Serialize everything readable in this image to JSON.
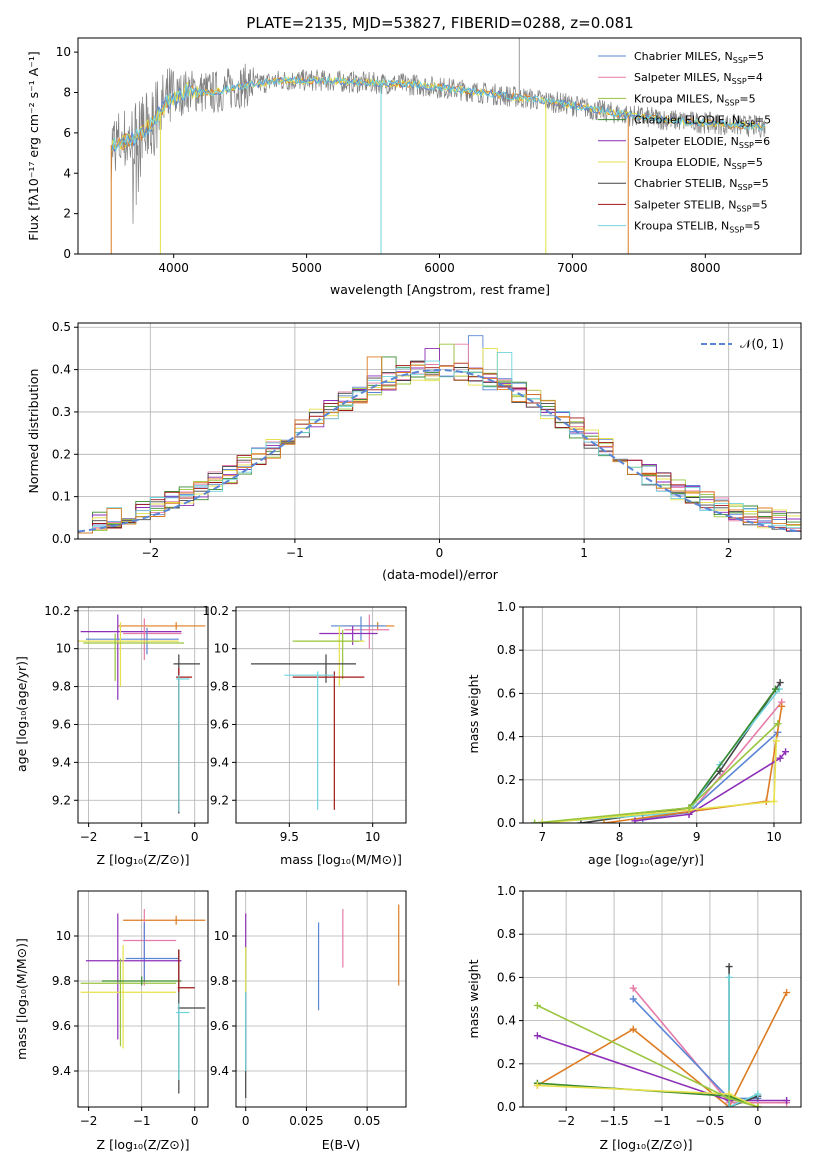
{
  "colors": {
    "chabrier_miles": "#5b86d6",
    "salpeter_miles": "#e57ca8",
    "kroupa_miles": "#9ac53f",
    "chabrier_elodie": "#3a8a2e",
    "salpeter_elodie": "#8e2fb8",
    "kroupa_elodie": "#e6e04a",
    "chabrier_stelib": "#444444",
    "salpeter_stelib": "#a01818",
    "kroupa_stelib": "#6ed4dc",
    "orange": "#dd7c22",
    "gaussian": "#5b86d6",
    "data": "#808080"
  },
  "chart_data": [
    {
      "type": "line",
      "title": "PLATE=2135, MJD=53827, FIBERID=0288, z=0.081",
      "xlabel": "wavelength [Angstrom, rest frame]",
      "ylabel": "Flux [fλ10⁻¹⁷ erg cm⁻² s⁻¹ A⁻¹]",
      "xlim": [
        3280,
        8720
      ],
      "ylim": [
        0,
        10.7
      ],
      "xticks": [
        4000,
        5000,
        6000,
        7000,
        8000
      ],
      "yticks": [
        0,
        2,
        4,
        6,
        8,
        10
      ],
      "legend": [
        {
          "name": "Chabrier MILES, N",
          "sub": "SSP",
          "tail": "=5",
          "color_key": "chabrier_miles"
        },
        {
          "name": "Salpeter MILES, N",
          "sub": "SSP",
          "tail": "=4",
          "color_key": "salpeter_miles"
        },
        {
          "name": "Kroupa MILES, N",
          "sub": "SSP",
          "tail": "=5",
          "color_key": "kroupa_miles"
        },
        {
          "name": "Chabrier ELODIE, N",
          "sub": "SSP",
          "tail": "=5",
          "color_key": "chabrier_elodie"
        },
        {
          "name": "Salpeter ELODIE, N",
          "sub": "SSP",
          "tail": "=6",
          "color_key": "salpeter_elodie"
        },
        {
          "name": "Kroupa ELODIE, N",
          "sub": "SSP",
          "tail": "=5",
          "color_key": "kroupa_elodie"
        },
        {
          "name": "Chabrier STELIB, N",
          "sub": "SSP",
          "tail": "=5",
          "color_key": "chabrier_stelib"
        },
        {
          "name": "Salpeter STELIB, N",
          "sub": "SSP",
          "tail": "=5",
          "color_key": "salpeter_stelib"
        },
        {
          "name": "Kroupa STELIB, N",
          "sub": "SSP",
          "tail": "=5",
          "color_key": "kroupa_stelib"
        }
      ],
      "legend_position": "upper-right",
      "continuum": [
        [
          3530,
          5.4
        ],
        [
          3650,
          5.6
        ],
        [
          3750,
          5.9
        ],
        [
          3850,
          6.6
        ],
        [
          3950,
          7.5
        ],
        [
          4100,
          8.1
        ],
        [
          4300,
          8.0
        ],
        [
          4500,
          8.3
        ],
        [
          4800,
          8.6
        ],
        [
          5100,
          8.6
        ],
        [
          5400,
          8.5
        ],
        [
          5800,
          8.4
        ],
        [
          6200,
          8.1
        ],
        [
          6550,
          7.8
        ],
        [
          6900,
          7.5
        ],
        [
          7200,
          7.1
        ],
        [
          7500,
          6.8
        ],
        [
          7800,
          6.6
        ],
        [
          8000,
          6.5
        ],
        [
          8200,
          6.4
        ],
        [
          8450,
          6.3
        ]
      ],
      "data_spike": [
        6600,
        10.7
      ]
    },
    {
      "type": "histogram",
      "xlabel": "(data-model)/error",
      "ylabel": "Normed distribution",
      "xlim": [
        -2.5,
        2.5
      ],
      "ylim": [
        0,
        0.51
      ],
      "xticks": [
        -2,
        -1,
        0,
        1,
        2
      ],
      "yticks": [
        0.0,
        0.1,
        0.2,
        0.3,
        0.4,
        0.5
      ],
      "gaussian_label": "𝒩(0, 1)",
      "bin_width": 0.1,
      "series_seed": [
        {
          "color_key": "chabrier_miles",
          "peak": [
            0.25,
            0.48
          ]
        },
        {
          "color_key": "salpeter_miles",
          "peak": [
            0.15,
            0.46
          ]
        },
        {
          "color_key": "kroupa_miles",
          "peak": [
            0.05,
            0.46
          ]
        },
        {
          "color_key": "chabrier_elodie",
          "peak": [
            -0.35,
            0.43
          ]
        },
        {
          "color_key": "salpeter_elodie",
          "peak": [
            -0.05,
            0.45
          ]
        },
        {
          "color_key": "kroupa_elodie",
          "peak": [
            0.35,
            0.45
          ]
        },
        {
          "color_key": "chabrier_stelib",
          "peak": [
            -0.15,
            0.42
          ]
        },
        {
          "color_key": "salpeter_stelib",
          "peak": [
            -0.25,
            0.41
          ]
        },
        {
          "color_key": "kroupa_stelib",
          "peak": [
            0.45,
            0.44
          ]
        },
        {
          "color_key": "orange",
          "peak": [
            -0.45,
            0.43
          ]
        }
      ]
    },
    {
      "type": "errorbar",
      "xlabel": "Z [log₁₀(Z/Z⊙)]",
      "ylabel": "age  [log₁₀(age/yr)]",
      "xlim": [
        -2.2,
        0.25
      ],
      "ylim": [
        9.08,
        10.22
      ],
      "xticks": [
        -2,
        -1,
        0
      ],
      "yticks": [
        9.2,
        9.4,
        9.6,
        9.8,
        10.0,
        10.2
      ],
      "points": [
        {
          "x": -0.35,
          "xerr": [
            1.1,
            0.55
          ],
          "y": 10.12,
          "yerr": [
            0.02,
            0.02
          ],
          "color_key": "orange"
        },
        {
          "x": -1.45,
          "xerr": [
            0.7,
            1.2
          ],
          "y": 10.09,
          "yerr": [
            0.36,
            0.09
          ],
          "color_key": "salpeter_elodie"
        },
        {
          "x": -0.95,
          "xerr": [
            0.4,
            0.7
          ],
          "y": 10.08,
          "yerr": [
            0.14,
            0.08
          ],
          "color_key": "salpeter_miles"
        },
        {
          "x": -0.9,
          "xerr": [
            1.15,
            0.6
          ],
          "y": 10.05,
          "yerr": [
            0.08,
            0.06
          ],
          "color_key": "chabrier_miles"
        },
        {
          "x": -1.4,
          "xerr": [
            0.8,
            1.1
          ],
          "y": 10.04,
          "yerr": [
            0.24,
            0.1
          ],
          "color_key": "kroupa_elodie"
        },
        {
          "x": -1.5,
          "xerr": [
            0.6,
            1.3
          ],
          "y": 10.03,
          "yerr": [
            0.2,
            0.05
          ],
          "color_key": "kroupa_miles"
        },
        {
          "x": -0.3,
          "xerr": [
            0.1,
            0.4
          ],
          "y": 9.92,
          "yerr": [
            0.79,
            0.05
          ],
          "color_key": "chabrier_stelib"
        },
        {
          "x": -0.3,
          "xerr": [
            0.05,
            0.25
          ],
          "y": 9.85,
          "yerr": [
            0.7,
            0.05
          ],
          "color_key": "salpeter_stelib"
        },
        {
          "x": -0.3,
          "xerr": [
            0.05,
            0.2
          ],
          "y": 9.84,
          "yerr": [
            0.7,
            0.02
          ],
          "color_key": "kroupa_stelib"
        }
      ]
    },
    {
      "type": "errorbar",
      "xlabel": "mass [log₁₀(M/M⊙)]",
      "ylabel": "",
      "xlim": [
        9.18,
        10.2
      ],
      "ylim": [
        9.08,
        10.22
      ],
      "xticks": [
        9.5,
        10.0
      ],
      "yticks": [
        9.2,
        9.4,
        9.6,
        9.8,
        10.0,
        10.2
      ],
      "points": [
        {
          "x": 10.03,
          "xerr": [
            0.2,
            0.1
          ],
          "y": 10.12,
          "yerr": [
            0.02,
            0.02
          ],
          "color_key": "orange"
        },
        {
          "x": 9.98,
          "xerr": [
            0.15,
            0.12
          ],
          "y": 10.1,
          "yerr": [
            0.1,
            0.08
          ],
          "color_key": "salpeter_miles"
        },
        {
          "x": 9.93,
          "xerr": [
            0.18,
            0.15
          ],
          "y": 10.12,
          "yerr": [
            0.08,
            0.05
          ],
          "color_key": "chabrier_miles"
        },
        {
          "x": 9.88,
          "xerr": [
            0.2,
            0.15
          ],
          "y": 10.08,
          "yerr": [
            0.06,
            0.04
          ],
          "color_key": "salpeter_elodie"
        },
        {
          "x": 9.8,
          "xerr": [
            0.25,
            0.15
          ],
          "y": 10.04,
          "yerr": [
            0.24,
            0.08
          ],
          "color_key": "kroupa_elodie"
        },
        {
          "x": 9.82,
          "xerr": [
            0.3,
            0.1
          ],
          "y": 10.04,
          "yerr": [
            0.2,
            0.06
          ],
          "color_key": "kroupa_miles"
        },
        {
          "x": 9.72,
          "xerr": [
            0.45,
            0.18
          ],
          "y": 9.92,
          "yerr": [
            0.1,
            0.05
          ],
          "color_key": "chabrier_stelib"
        },
        {
          "x": 9.77,
          "xerr": [
            0.25,
            0.18
          ],
          "y": 9.85,
          "yerr": [
            0.7,
            0.03
          ],
          "color_key": "salpeter_stelib"
        },
        {
          "x": 9.67,
          "xerr": [
            0.2,
            0.1
          ],
          "y": 9.86,
          "yerr": [
            0.71,
            0.02
          ],
          "color_key": "kroupa_stelib"
        }
      ]
    },
    {
      "type": "line",
      "xlabel": "age  [log₁₀(age/yr)]",
      "ylabel": "mass weight",
      "xlim": [
        6.75,
        10.35
      ],
      "ylim": [
        0,
        1.0
      ],
      "xticks": [
        7,
        8,
        9,
        10
      ],
      "yticks": [
        0.0,
        0.2,
        0.4,
        0.6,
        0.8,
        1.0
      ],
      "series": [
        {
          "color_key": "chabrier_stelib",
          "x": [
            7.5,
            8.9,
            9.3,
            10.08
          ],
          "y": [
            0.0,
            0.07,
            0.24,
            0.65
          ]
        },
        {
          "color_key": "kroupa_stelib",
          "x": [
            6.9,
            8.9,
            9.3,
            10.07
          ],
          "y": [
            0.0,
            0.05,
            0.27,
            0.62
          ]
        },
        {
          "color_key": "chabrier_elodie",
          "x": [
            7.0,
            8.9,
            10.02
          ],
          "y": [
            0.0,
            0.07,
            0.62
          ]
        },
        {
          "color_key": "salpeter_miles",
          "x": [
            8.9,
            10.1
          ],
          "y": [
            0.04,
            0.56
          ]
        },
        {
          "color_key": "chabrier_miles",
          "x": [
            8.3,
            8.9,
            10.05
          ],
          "y": [
            0.02,
            0.05,
            0.42
          ]
        },
        {
          "color_key": "orange",
          "x": [
            7.8,
            9.9,
            10.1
          ],
          "y": [
            0.0,
            0.1,
            0.54
          ]
        },
        {
          "color_key": "salpeter_elodie",
          "x": [
            8.2,
            8.9,
            10.08,
            10.15
          ],
          "y": [
            0.01,
            0.04,
            0.3,
            0.33
          ]
        },
        {
          "color_key": "kroupa_elodie",
          "x": [
            7.0,
            8.9,
            10.0,
            10.03
          ],
          "y": [
            0.0,
            0.06,
            0.1,
            0.38
          ]
        },
        {
          "color_key": "kroupa_miles",
          "x": [
            6.9,
            8.9,
            10.05
          ],
          "y": [
            0.0,
            0.07,
            0.46
          ]
        }
      ]
    },
    {
      "type": "errorbar",
      "xlabel": "Z [log₁₀(Z/Z⊙)]",
      "ylabel": "mass [log₁₀(M/M⊙)]",
      "xlim": [
        -2.2,
        0.25
      ],
      "ylim": [
        9.24,
        10.2
      ],
      "xticks": [
        -2,
        -1,
        0
      ],
      "yticks": [
        9.4,
        9.6,
        9.8,
        10.0
      ],
      "points": [
        {
          "x": -0.35,
          "xerr": [
            1.0,
            0.55
          ],
          "y": 10.07,
          "yerr": [
            0.02,
            0.02
          ],
          "color_key": "orange"
        },
        {
          "x": -0.95,
          "xerr": [
            0.4,
            0.6
          ],
          "y": 9.98,
          "yerr": [
            0.2,
            0.14
          ],
          "color_key": "salpeter_miles"
        },
        {
          "x": -0.95,
          "xerr": [
            0.35,
            0.65
          ],
          "y": 9.9,
          "yerr": [
            0.1,
            0.16
          ],
          "color_key": "chabrier_miles"
        },
        {
          "x": -1.45,
          "xerr": [
            0.6,
            1.2
          ],
          "y": 9.89,
          "yerr": [
            0.35,
            0.21
          ],
          "color_key": "salpeter_elodie"
        },
        {
          "x": -1.35,
          "xerr": [
            0.8,
            1.0
          ],
          "y": 9.75,
          "yerr": [
            0.25,
            0.21
          ],
          "color_key": "kroupa_elodie"
        },
        {
          "x": -1.4,
          "xerr": [
            0.75,
            1.05
          ],
          "y": 9.79,
          "yerr": [
            0.28,
            0.11
          ],
          "color_key": "kroupa_miles"
        },
        {
          "x": -1.0,
          "xerr": [
            0.75,
            0.75
          ],
          "y": 9.8,
          "yerr": [
            0.02,
            0.02
          ],
          "color_key": "chabrier_elodie"
        },
        {
          "x": -0.3,
          "xerr": [
            0.02,
            0.5
          ],
          "y": 9.68,
          "yerr": [
            0.38,
            0.26
          ],
          "color_key": "chabrier_stelib"
        },
        {
          "x": -0.3,
          "xerr": [
            0.02,
            0.3
          ],
          "y": 9.77,
          "yerr": [
            0.02,
            0.17
          ],
          "color_key": "salpeter_stelib"
        },
        {
          "x": -0.3,
          "xerr": [
            0.05,
            0.2
          ],
          "y": 9.66,
          "yerr": [
            0.3,
            0.04
          ],
          "color_key": "kroupa_stelib"
        }
      ]
    },
    {
      "type": "errorbar",
      "xlabel": "E(B-V)",
      "ylabel": "",
      "xlim": [
        -0.004,
        0.066
      ],
      "ylim": [
        9.24,
        10.2
      ],
      "xticks": [
        0.0,
        0.025,
        0.05
      ],
      "yticks": [
        9.4,
        9.6,
        9.8,
        10.0
      ],
      "points": [
        {
          "x": 0.063,
          "y": 9.95,
          "yerr": [
            0.17,
            0.19
          ],
          "color_key": "orange"
        },
        {
          "x": 0.04,
          "y": 9.98,
          "yerr": [
            0.12,
            0.14
          ],
          "color_key": "salpeter_miles"
        },
        {
          "x": 0.03,
          "y": 9.87,
          "yerr": [
            0.2,
            0.19
          ],
          "color_key": "chabrier_miles"
        },
        {
          "x": 0.0,
          "y": 9.95,
          "yerr": [
            0.1,
            0.15
          ],
          "color_key": "salpeter_elodie"
        },
        {
          "x": 0.0,
          "y": 9.7,
          "yerr": [
            0.42,
            0.25
          ],
          "color_key": "chabrier_stelib"
        },
        {
          "x": 0.0,
          "y": 9.6,
          "yerr": [
            0.2,
            0.35
          ],
          "color_key": "kroupa_stelib"
        },
        {
          "x": 0.0,
          "y": 9.85,
          "yerr": [
            0.1,
            0.1
          ],
          "color_key": "kroupa_elodie"
        }
      ]
    },
    {
      "type": "line",
      "xlabel": "Z [log₁₀(Z/Z⊙)]",
      "ylabel": "mass weight",
      "xlim": [
        -2.45,
        0.45
      ],
      "ylim": [
        0,
        1.0
      ],
      "xticks": [
        -2.0,
        -1.5,
        -1.0,
        -0.5,
        0.0
      ],
      "yticks": [
        0.0,
        0.2,
        0.4,
        0.6,
        0.8,
        1.0
      ],
      "series": [
        {
          "color_key": "orange",
          "x": [
            -2.3,
            -1.3,
            -0.3,
            0.3
          ],
          "y": [
            0.1,
            0.36,
            0.0,
            0.53
          ]
        },
        {
          "color_key": "salpeter_miles",
          "x": [
            -1.3,
            -0.3,
            0.3
          ],
          "y": [
            0.55,
            0.02,
            0.02
          ]
        },
        {
          "color_key": "chabrier_miles",
          "x": [
            -1.3,
            -0.3,
            0.0
          ],
          "y": [
            0.5,
            0.04,
            0.04
          ]
        },
        {
          "color_key": "salpeter_elodie",
          "x": [
            -2.3,
            -0.3,
            0.3
          ],
          "y": [
            0.33,
            0.03,
            0.03
          ]
        },
        {
          "color_key": "chabrier_stelib",
          "x": [
            -0.3,
            -0.3,
            0.0
          ],
          "y": [
            0.65,
            0.0,
            0.05
          ]
        },
        {
          "color_key": "kroupa_stelib",
          "x": [
            -0.3,
            -0.3,
            0.0
          ],
          "y": [
            0.6,
            0.0,
            0.06
          ]
        },
        {
          "color_key": "chabrier_elodie",
          "x": [
            -2.3,
            -0.3,
            0.0
          ],
          "y": [
            0.11,
            0.05,
            0.0
          ]
        },
        {
          "color_key": "kroupa_elodie",
          "x": [
            -2.3,
            -0.3,
            0.0
          ],
          "y": [
            0.1,
            0.06,
            0.0
          ]
        },
        {
          "color_key": "kroupa_miles",
          "x": [
            -2.3,
            -0.3,
            0.0
          ],
          "y": [
            0.47,
            0.04,
            0.0
          ]
        }
      ]
    }
  ]
}
